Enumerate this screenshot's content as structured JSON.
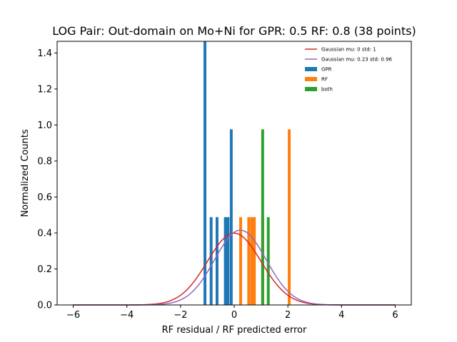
{
  "chart_data": {
    "type": "bar",
    "title": "LOG Pair: Out-domain on Mo+Ni for GPR: 0.5 RF: 0.8 (38 points)",
    "xlabel": "RF residual / RF predicted error",
    "ylabel": "Normalized Counts",
    "xlim": [
      -6.6,
      6.6
    ],
    "ylim": [
      0,
      1.465
    ],
    "xticks": [
      -6,
      -4,
      -2,
      0,
      2,
      4,
      6
    ],
    "xtick_labels": [
      "−6",
      "−4",
      "−2",
      "0",
      "2",
      "4",
      "6"
    ],
    "yticks": [
      0.0,
      0.2,
      0.4,
      0.6,
      0.8,
      1.0,
      1.2,
      1.4
    ],
    "ytick_labels": [
      "0.0",
      "0.2",
      "0.4",
      "0.6",
      "0.8",
      "1.0",
      "1.2",
      "1.4"
    ],
    "grid": false,
    "legend_position": "top-right",
    "bar_width": 0.105,
    "series": [
      {
        "name": "GPR",
        "color": "#1f77b4",
        "bars": [
          {
            "x": -1.09,
            "y": 1.465
          },
          {
            "x": -0.86,
            "y": 0.488
          },
          {
            "x": -0.64,
            "y": 0.488
          },
          {
            "x": -0.33,
            "y": 0.488
          },
          {
            "x": -0.23,
            "y": 0.488
          },
          {
            "x": -0.11,
            "y": 0.976
          }
        ]
      },
      {
        "name": "RF",
        "color": "#ff7f0e",
        "bars": [
          {
            "x": 0.24,
            "y": 0.488
          },
          {
            "x": 0.54,
            "y": 0.488
          },
          {
            "x": 0.65,
            "y": 0.488
          },
          {
            "x": 0.75,
            "y": 0.488
          },
          {
            "x": 1.06,
            "y": 0.488
          },
          {
            "x": 2.05,
            "y": 0.976
          }
        ]
      },
      {
        "name": "both",
        "color": "#2ca02c",
        "bars": [
          {
            "x": 1.06,
            "y": 0.976
          },
          {
            "x": 1.27,
            "y": 0.488
          }
        ]
      }
    ],
    "curves": [
      {
        "name": "Gaussian mu: 0 std: 1",
        "color": "#d62728",
        "mu": 0,
        "std": 1,
        "x_range": [
          -6,
          6
        ]
      },
      {
        "name": "Gaussian mu: 0.23 std: 0.96",
        "color": "#9467bd",
        "mu": 0.23,
        "std": 0.96,
        "x_range": [
          -6,
          6
        ]
      }
    ],
    "legend_order": [
      "Gaussian mu: 0 std: 1",
      "Gaussian mu: 0.23 std: 0.96",
      "GPR",
      "RF",
      "both"
    ]
  }
}
